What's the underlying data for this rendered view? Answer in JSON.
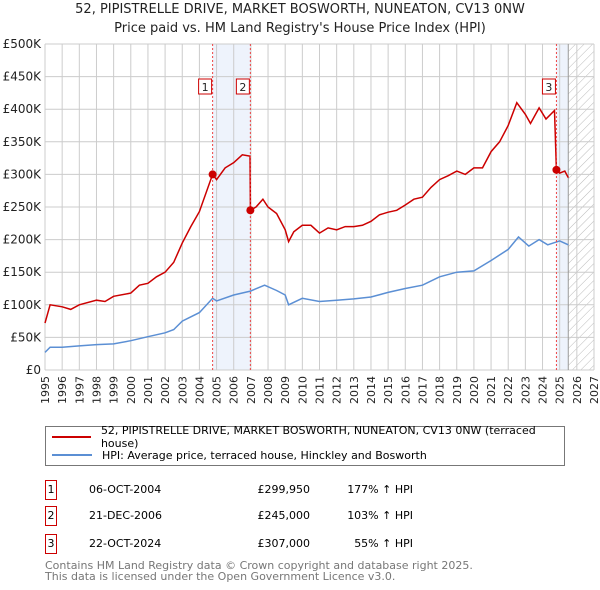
{
  "header": {
    "title": "52, PIPISTRELLE DRIVE, MARKET BOSWORTH, NUNEATON, CV13 0NW",
    "subtitle": "Price paid vs. HM Land Registry's House Price Index (HPI)"
  },
  "chart_data": {
    "type": "line",
    "title": "Price paid vs. HM Land Registry's House Price Index (HPI)",
    "xlim": [
      1995,
      2027
    ],
    "ylim": [
      0,
      500000
    ],
    "x_ticks": [
      "1995",
      "1996",
      "1997",
      "1998",
      "1999",
      "2000",
      "2001",
      "2002",
      "2003",
      "2004",
      "2005",
      "2006",
      "2007",
      "2008",
      "2009",
      "2010",
      "2011",
      "2012",
      "2013",
      "2014",
      "2015",
      "2016",
      "2017",
      "2018",
      "2019",
      "2020",
      "2021",
      "2022",
      "2023",
      "2024",
      "2025",
      "2026",
      "2027"
    ],
    "y_ticks": [
      {
        "v": 0,
        "label": "£0"
      },
      {
        "v": 50000,
        "label": "£50K"
      },
      {
        "v": 100000,
        "label": "£100K"
      },
      {
        "v": 150000,
        "label": "£150K"
      },
      {
        "v": 200000,
        "label": "£200K"
      },
      {
        "v": 250000,
        "label": "£250K"
      },
      {
        "v": 300000,
        "label": "£300K"
      },
      {
        "v": 350000,
        "label": "£350K"
      },
      {
        "v": 400000,
        "label": "£400K"
      },
      {
        "v": 450000,
        "label": "£450K"
      },
      {
        "v": 500000,
        "label": "£500K"
      }
    ],
    "grid": true,
    "shaded_ranges": [
      [
        2004.77,
        2006.97
      ],
      [
        2024.81,
        2025.5
      ]
    ],
    "future_hatch_from": 2025.5,
    "series": [
      {
        "name": "52, PIPISTRELLE DRIVE, MARKET BOSWORTH, NUNEATON, CV13 0NW (terraced house)",
        "color": "#cc0000",
        "x": [
          1995.0,
          1995.3,
          1996,
          1996.5,
          1997,
          1998,
          1998.5,
          1999,
          2000,
          2000.5,
          2001,
          2001.5,
          2002,
          2002.5,
          2003,
          2003.5,
          2004,
          2004.77,
          2005,
          2005.5,
          2006,
          2006.5,
          2006.95,
          2006.97,
          2007.3,
          2007.7,
          2008,
          2008.5,
          2009,
          2009.2,
          2009.5,
          2010,
          2010.5,
          2011,
          2011.5,
          2012,
          2012.5,
          2013,
          2013.5,
          2014,
          2014.5,
          2015,
          2015.5,
          2016,
          2016.5,
          2017,
          2017.5,
          2018,
          2018.5,
          2019,
          2019.5,
          2020,
          2020.5,
          2021,
          2021.5,
          2022,
          2022.5,
          2023,
          2023.3,
          2023.8,
          2024.2,
          2024.7,
          2024.81,
          2025.0,
          2025.3,
          2025.5
        ],
        "y": [
          72000,
          100000,
          97000,
          93000,
          100000,
          107000,
          105000,
          113000,
          118000,
          130000,
          133000,
          143000,
          150000,
          165000,
          195000,
          220000,
          243000,
          299950,
          292000,
          310000,
          318000,
          330000,
          328000,
          245000,
          250000,
          262000,
          250000,
          240000,
          215000,
          197000,
          212000,
          222000,
          222000,
          210000,
          218000,
          215000,
          220000,
          220000,
          222000,
          228000,
          238000,
          242000,
          245000,
          253000,
          262000,
          265000,
          280000,
          292000,
          298000,
          305000,
          300000,
          310000,
          310000,
          335000,
          350000,
          375000,
          410000,
          392000,
          378000,
          402000,
          385000,
          398000,
          307000,
          302000,
          305000,
          295000
        ]
      },
      {
        "name": "HPI: Average price, terraced house, Hinckley and Bosworth",
        "color": "#5b8fd4",
        "x": [
          1995,
          1995.3,
          1996,
          1997,
          1998,
          1999,
          2000,
          2001,
          2002,
          2002.5,
          2003,
          2004,
          2004.77,
          2005,
          2006,
          2006.97,
          2007.8,
          2008.5,
          2009,
          2009.2,
          2010,
          2011,
          2012,
          2013,
          2014,
          2015,
          2016,
          2017,
          2018,
          2019,
          2020,
          2021,
          2022,
          2022.6,
          2023.2,
          2023.8,
          2024.3,
          2025,
          2025.5
        ],
        "y": [
          27000,
          35000,
          35000,
          37000,
          39000,
          40000,
          45000,
          51000,
          57000,
          62000,
          75000,
          88000,
          110000,
          106000,
          115000,
          121000,
          130000,
          122000,
          115000,
          100000,
          110000,
          105000,
          107000,
          109000,
          112000,
          119000,
          125000,
          130000,
          143000,
          150000,
          152000,
          168000,
          185000,
          204000,
          190000,
          200000,
          192000,
          198000,
          192000
        ]
      }
    ],
    "sales": [
      {
        "n": "1",
        "x": 2004.77,
        "y": 299950
      },
      {
        "n": "2",
        "x": 2006.97,
        "y": 245000
      },
      {
        "n": "3",
        "x": 2024.81,
        "y": 307000
      }
    ]
  },
  "legend": {
    "property": "52, PIPISTRELLE DRIVE, MARKET BOSWORTH, NUNEATON, CV13 0NW (terraced house)",
    "hpi": "HPI: Average price, terraced house, Hinckley and Bosworth"
  },
  "transactions": [
    {
      "n": "1",
      "date": "06-OCT-2004",
      "price": "£299,950",
      "hpi": "177% ↑ HPI"
    },
    {
      "n": "2",
      "date": "21-DEC-2006",
      "price": "£245,000",
      "hpi": "103% ↑ HPI"
    },
    {
      "n": "3",
      "date": "22-OCT-2024",
      "price": "£307,000",
      "hpi": "55% ↑ HPI"
    }
  ],
  "footer": {
    "line1": "Contains HM Land Registry data © Crown copyright and database right 2025.",
    "line2": "This data is licensed under the Open Government Licence v3.0."
  }
}
